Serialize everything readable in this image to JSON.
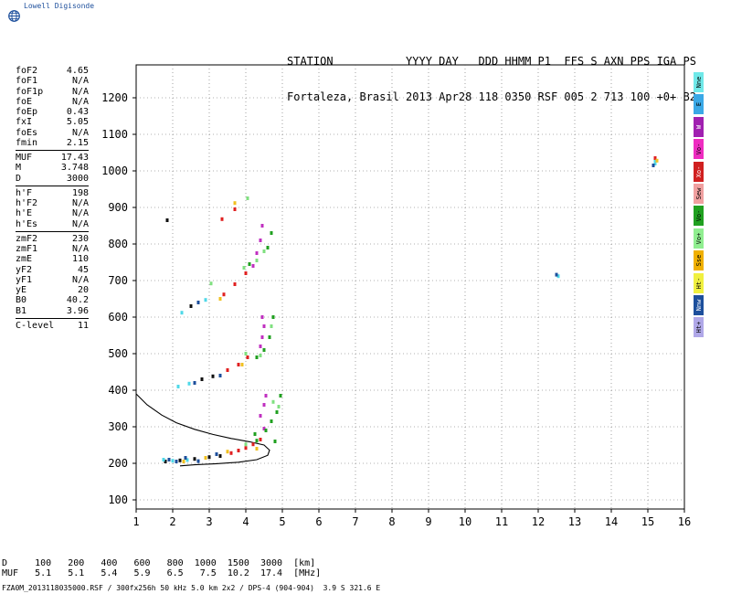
{
  "logo": {
    "brand_text": "Lowell Digisonde",
    "icon": "globe-icon"
  },
  "header": {
    "line1": "STATION           YYYY DAY   DDD HHMM P1  FFS S AXN PPS IGA PS",
    "line2": "Fortaleza, Brasil 2013 Apr28 118 0350 RSF 005 2 713 100 +0+ B2"
  },
  "params": {
    "group1": [
      {
        "name": "foF2",
        "value": "4.65"
      },
      {
        "name": "foF1",
        "value": "N/A"
      },
      {
        "name": "foF1p",
        "value": "N/A"
      },
      {
        "name": "foE",
        "value": "N/A"
      },
      {
        "name": "foEp",
        "value": "0.43"
      },
      {
        "name": "fxI",
        "value": "5.05"
      },
      {
        "name": "foEs",
        "value": "N/A"
      },
      {
        "name": "fmin",
        "value": "2.15"
      }
    ],
    "group2": [
      {
        "name": "MUF",
        "value": "17.43"
      },
      {
        "name": "M",
        "value": "3.748"
      },
      {
        "name": "D",
        "value": "3000"
      }
    ],
    "group3": [
      {
        "name": "h'F",
        "value": "198"
      },
      {
        "name": "h'F2",
        "value": "N/A"
      },
      {
        "name": "h'E",
        "value": "N/A"
      },
      {
        "name": "h'Es",
        "value": "N/A"
      }
    ],
    "group4": [
      {
        "name": "zmF2",
        "value": "230"
      },
      {
        "name": "zmF1",
        "value": "N/A"
      },
      {
        "name": "zmE",
        "value": "110"
      },
      {
        "name": "yF2",
        "value": "45"
      },
      {
        "name": "yF1",
        "value": "N/A"
      },
      {
        "name": "yE",
        "value": "20"
      },
      {
        "name": "B0",
        "value": "40.2"
      },
      {
        "name": "B1",
        "value": "3.96"
      }
    ],
    "group5": [
      {
        "name": "C-level",
        "value": "11"
      }
    ]
  },
  "legend": [
    {
      "label": "Nne",
      "color": "#6fe8e8"
    },
    {
      "label": "E",
      "color": "#3aa8e6"
    },
    {
      "label": "W",
      "color": "#a020b0"
    },
    {
      "label": "Vo-",
      "color": "#ee2cc0"
    },
    {
      "label": "Xo-",
      "color": "#d02020"
    },
    {
      "label": "Sew",
      "color": "#f0a0a0"
    },
    {
      "label": "Vo-",
      "color": "#20a020"
    },
    {
      "label": "Vo+",
      "color": "#90ee90"
    },
    {
      "label": "Sse",
      "color": "#f0b000"
    },
    {
      "label": "Ht-",
      "color": "#f0f040"
    },
    {
      "label": "Nnw",
      "color": "#1d4f9c"
    },
    {
      "label": "Ht+",
      "color": "#b0a8e8"
    }
  ],
  "footer": {
    "row1": "D     100   200   400   600   800  1000  1500  3000  [km]",
    "row2": "MUF   5.1   5.1   5.4   5.9   6.5   7.5  10.2  17.4  [MHz]",
    "note": "FZA0M_2013118035000.RSF / 300fx256h 50 kHz 5.0 km 2x2 / DPS-4 (904-904)  3.9 S 321.6 E"
  },
  "chart_data": {
    "type": "scatter",
    "xlabel": "",
    "ylabel": "",
    "xlim": [
      1,
      16
    ],
    "ylim": [
      75,
      1290
    ],
    "x_ticks": [
      "1",
      "2",
      "3",
      "4",
      "5",
      "6",
      "7",
      "8",
      "9",
      "10",
      "11",
      "12",
      "13",
      "14",
      "15",
      "16"
    ],
    "y_ticks": [
      "100",
      "200",
      "300",
      "400",
      "500",
      "600",
      "700",
      "800",
      "900",
      "1000",
      "1100",
      "1200"
    ],
    "grid": true,
    "series": [
      {
        "color_key": "dark",
        "points": [
          [
            1.8,
            205
          ],
          [
            2.2,
            208
          ],
          [
            2.6,
            212
          ],
          [
            3.0,
            217
          ],
          [
            3.3,
            220
          ],
          [
            1.85,
            865
          ],
          [
            2.8,
            430
          ],
          [
            3.1,
            438
          ],
          [
            2.5,
            630
          ]
        ]
      },
      {
        "color_key": "cyan",
        "points": [
          [
            1.75,
            210
          ],
          [
            2.0,
            207
          ],
          [
            2.4,
            209
          ],
          [
            2.15,
            410
          ],
          [
            2.45,
            418
          ],
          [
            2.25,
            612
          ],
          [
            2.9,
            647
          ],
          [
            15.2,
            1020
          ],
          [
            15.2,
            1030
          ],
          [
            12.55,
            712
          ]
        ]
      },
      {
        "color_key": "red",
        "points": [
          [
            3.6,
            228
          ],
          [
            3.8,
            235
          ],
          [
            4.0,
            242
          ],
          [
            4.2,
            252
          ],
          [
            4.4,
            265
          ],
          [
            3.5,
            455
          ],
          [
            3.8,
            470
          ],
          [
            4.05,
            490
          ],
          [
            3.4,
            662
          ],
          [
            3.7,
            690
          ],
          [
            4.0,
            720
          ],
          [
            3.35,
            868
          ],
          [
            3.7,
            895
          ],
          [
            15.2,
            1035
          ]
        ]
      },
      {
        "color_key": "magenta",
        "points": [
          [
            4.4,
            330
          ],
          [
            4.5,
            360
          ],
          [
            4.55,
            385
          ],
          [
            4.4,
            520
          ],
          [
            4.45,
            545
          ],
          [
            4.5,
            575
          ],
          [
            4.45,
            600
          ],
          [
            4.2,
            740
          ],
          [
            4.3,
            775
          ],
          [
            4.4,
            810
          ],
          [
            4.45,
            850
          ],
          [
            4.5,
            295
          ]
        ]
      },
      {
        "color_key": "green",
        "points": [
          [
            4.3,
            262
          ],
          [
            4.55,
            290
          ],
          [
            4.7,
            315
          ],
          [
            4.85,
            340
          ],
          [
            4.95,
            385
          ],
          [
            4.3,
            490
          ],
          [
            4.5,
            510
          ],
          [
            4.65,
            545
          ],
          [
            4.75,
            600
          ],
          [
            4.1,
            745
          ],
          [
            4.6,
            790
          ],
          [
            4.7,
            830
          ],
          [
            4.25,
            280
          ],
          [
            4.8,
            260
          ]
        ]
      },
      {
        "color_key": "lightgreen",
        "points": [
          [
            4.0,
            252
          ],
          [
            4.9,
            355
          ],
          [
            4.75,
            368
          ],
          [
            4.0,
            500
          ],
          [
            4.4,
            495
          ],
          [
            4.7,
            575
          ],
          [
            3.95,
            735
          ],
          [
            4.3,
            755
          ],
          [
            4.5,
            780
          ],
          [
            4.05,
            925
          ],
          [
            3.05,
            692
          ]
        ]
      },
      {
        "color_key": "yellow",
        "points": [
          [
            2.3,
            205
          ],
          [
            2.9,
            215
          ],
          [
            3.5,
            232
          ],
          [
            3.9,
            470
          ],
          [
            4.3,
            240
          ],
          [
            3.7,
            912
          ],
          [
            15.25,
            1028
          ],
          [
            3.3,
            650
          ]
        ]
      },
      {
        "color_key": "blue",
        "points": [
          [
            1.9,
            210
          ],
          [
            2.1,
            205
          ],
          [
            2.35,
            215
          ],
          [
            2.7,
            206
          ],
          [
            3.2,
            225
          ],
          [
            2.6,
            420
          ],
          [
            3.3,
            440
          ],
          [
            2.7,
            640
          ],
          [
            12.5,
            716
          ],
          [
            15.15,
            1015
          ]
        ]
      }
    ],
    "profile": [
      [
        1,
        390
      ],
      [
        1.3,
        360
      ],
      [
        1.7,
        332
      ],
      [
        2.1,
        311
      ],
      [
        2.6,
        293
      ],
      [
        3.1,
        279
      ],
      [
        3.6,
        268
      ],
      [
        4.1,
        259
      ],
      [
        4.5,
        250
      ],
      [
        4.65,
        236
      ],
      [
        4.6,
        222
      ],
      [
        4.3,
        210
      ],
      [
        3.8,
        203
      ],
      [
        3.2,
        199
      ],
      [
        2.6,
        196
      ],
      [
        2.2,
        193
      ]
    ]
  }
}
